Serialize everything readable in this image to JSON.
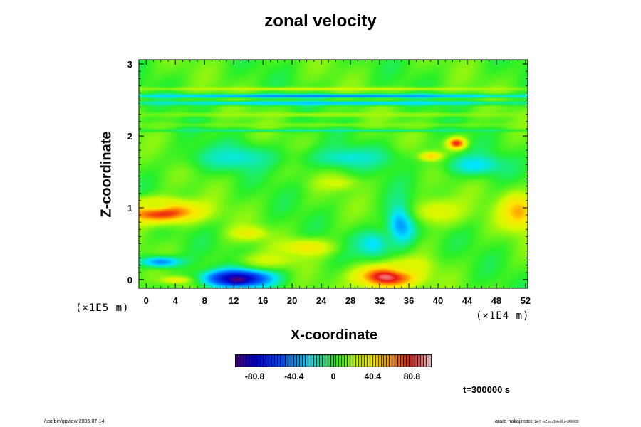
{
  "chart_data": {
    "type": "heatmap",
    "title": "zonal velocity",
    "xlabel": "X-coordinate",
    "ylabel": "Z-coordinate",
    "x_scale_note": "(×1E4 m)",
    "z_scale_note": "(×1E5 m)",
    "x_ticks": [
      "0",
      "4",
      "8",
      "12",
      "16",
      "20",
      "24",
      "28",
      "32",
      "36",
      "40",
      "44",
      "48",
      "52"
    ],
    "y_ticks": [
      "0",
      "1",
      "2",
      "3"
    ],
    "xlim": [
      -1,
      52.3
    ],
    "ylim": [
      -0.12,
      3.06
    ],
    "colorbar": {
      "ticks": [
        "-80.8",
        "-40.4",
        "0",
        "40.4",
        "80.8"
      ],
      "tick_values": [
        -80.8,
        -40.4,
        0,
        40.4,
        80.8
      ],
      "range": [
        -101,
        101
      ]
    },
    "background_value": 5,
    "features": [
      {
        "x": 2.0,
        "z": 0.95,
        "rx": 5.0,
        "rz": 0.15,
        "value": 90
      },
      {
        "x": 1.0,
        "z": 1.05,
        "rx": 3.0,
        "rz": 0.1,
        "value": 25
      },
      {
        "x": 51.0,
        "z": 0.95,
        "rx": 2.5,
        "rz": 0.25,
        "value": 55
      },
      {
        "x": 33.0,
        "z": 0.05,
        "rx": 4.0,
        "rz": 0.16,
        "value": 95
      },
      {
        "x": 36.0,
        "z": 0.2,
        "rx": 3.0,
        "rz": 0.12,
        "value": 30
      },
      {
        "x": 12.5,
        "z": 0.02,
        "rx": 4.5,
        "rz": 0.12,
        "value": -90
      },
      {
        "x": 12.5,
        "z": 0.0,
        "rx": 1.0,
        "rz": 0.04,
        "value": -101
      },
      {
        "x": 2.0,
        "z": 0.25,
        "rx": 3.0,
        "rz": 0.08,
        "value": -40
      },
      {
        "x": 4.0,
        "z": 0.0,
        "rx": 2.0,
        "rz": 0.05,
        "value": 35
      },
      {
        "x": 14.0,
        "z": 0.65,
        "rx": 2.5,
        "rz": 0.1,
        "value": 35
      },
      {
        "x": 22.0,
        "z": 0.45,
        "rx": 3.5,
        "rz": 0.12,
        "value": 40
      },
      {
        "x": 17.0,
        "z": 0.28,
        "rx": 4.0,
        "rz": 0.1,
        "value": 25
      },
      {
        "x": 35.0,
        "z": 0.8,
        "rx": 2.0,
        "rz": 0.3,
        "value": -45
      },
      {
        "x": 31.0,
        "z": 0.5,
        "rx": 2.5,
        "rz": 0.2,
        "value": -25
      },
      {
        "x": 42.5,
        "z": 1.9,
        "rx": 1.2,
        "rz": 0.08,
        "value": 80
      },
      {
        "x": 39.0,
        "z": 1.72,
        "rx": 1.5,
        "rz": 0.06,
        "value": 55
      },
      {
        "x": 26.0,
        "z": 1.35,
        "rx": 3.0,
        "rz": 0.1,
        "value": 25
      },
      {
        "x": 12.0,
        "z": 1.7,
        "rx": 6.0,
        "rz": 0.18,
        "value": -20
      },
      {
        "x": 28.0,
        "z": 1.7,
        "rx": 6.0,
        "rz": 0.15,
        "value": -20
      },
      {
        "x": 45.0,
        "z": 1.6,
        "rx": 4.0,
        "rz": 0.15,
        "value": -25
      },
      {
        "x": 40.0,
        "z": 0.95,
        "rx": 4.0,
        "rz": 0.2,
        "value": 30
      },
      {
        "x": 25.0,
        "z": 2.56,
        "rx": 30.0,
        "rz": 0.025,
        "value": -45
      },
      {
        "x": 25.0,
        "z": 2.46,
        "rx": 30.0,
        "rz": 0.03,
        "value": -30
      },
      {
        "x": 25.0,
        "z": 2.66,
        "rx": 30.0,
        "rz": 0.025,
        "value": 25
      },
      {
        "x": 25.0,
        "z": 2.3,
        "rx": 30.0,
        "rz": 0.03,
        "value": 18
      },
      {
        "x": 25.0,
        "z": 2.08,
        "rx": 30.0,
        "rz": 0.02,
        "value": -15
      },
      {
        "x": 25.0,
        "z": 2.16,
        "rx": 30.0,
        "rz": 0.02,
        "value": 14
      }
    ]
  },
  "time_label": "t=300000 s",
  "footer": {
    "left": "/usr/bin/gpview 2005-07-14",
    "right": "arare-nakajima",
    "right_sub": "03_1e-5_vZ.nc@VelX,t=300000"
  }
}
